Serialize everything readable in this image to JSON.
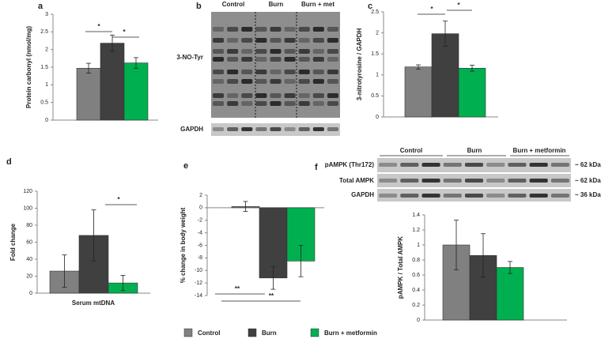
{
  "chart_data": [
    {
      "type": "bar",
      "label": "a",
      "ylabel": "Protein carbonyl (nmol/mg)",
      "values": [
        1.47,
        2.18,
        1.62
      ],
      "errors": [
        0.14,
        0.23,
        0.15
      ],
      "colors": [
        "#808080",
        "#404040",
        "#00b050"
      ],
      "ylim": [
        0,
        3
      ],
      "yticks": [
        0,
        0.5,
        1,
        1.5,
        2,
        2.5,
        3
      ],
      "annotations": [
        "*",
        "*"
      ]
    },
    {
      "type": "bar",
      "label": "c",
      "ylabel": "3-nitrotyrosine / GAPDH",
      "values": [
        1.19,
        1.98,
        1.16
      ],
      "errors": [
        0.05,
        0.3,
        0.07
      ],
      "colors": [
        "#808080",
        "#404040",
        "#00b050"
      ],
      "ylim": [
        0,
        2.5
      ],
      "yticks": [
        0,
        0.5,
        1,
        1.5,
        2,
        2.5
      ],
      "annotations": [
        "*",
        "*"
      ]
    },
    {
      "type": "bar",
      "label": "d",
      "ylabel": "Fold change",
      "xlabel": "Serum mtDNA",
      "values": [
        26,
        68,
        12
      ],
      "errors": [
        19,
        30,
        9
      ],
      "colors": [
        "#808080",
        "#404040",
        "#00b050"
      ],
      "ylim": [
        0,
        120
      ],
      "yticks": [
        0,
        20,
        40,
        60,
        80,
        100,
        120
      ],
      "annotations": [
        "*"
      ]
    },
    {
      "type": "bar",
      "label": "e",
      "ylabel": "% change in body weight",
      "values": [
        0.2,
        -11.2,
        -8.5
      ],
      "errors": [
        0.8,
        1.8,
        2.5
      ],
      "colors": [
        "#808080",
        "#404040",
        "#00b050"
      ],
      "ylim": [
        -14,
        2
      ],
      "yticks": [
        -14,
        -12,
        -10,
        -8,
        -6,
        -4,
        -2,
        0,
        2
      ],
      "annotations": [
        "**",
        "**"
      ]
    },
    {
      "type": "bar",
      "ylabel": "pAMPK / Total AMPK",
      "values": [
        1.0,
        0.86,
        0.7
      ],
      "errors": [
        0.33,
        0.29,
        0.08
      ],
      "colors": [
        "#808080",
        "#404040",
        "#00b050"
      ],
      "ylim": [
        0,
        1.4
      ],
      "yticks": [
        0,
        0.2,
        0.4,
        0.6,
        0.8,
        1,
        1.2,
        1.4
      ],
      "annotations": []
    }
  ],
  "blots": [
    {
      "label": "b",
      "groups": [
        "Control",
        "Burn",
        "Burn + met"
      ],
      "rows": [
        "3-NO-Tyr",
        "GAPDH"
      ]
    },
    {
      "label": "f",
      "groups": [
        "Control",
        "Burn",
        "Burn + metformin"
      ],
      "rows": [
        "pAMPK (Thr172)",
        "Total AMPK",
        "GAPDH"
      ],
      "sizes": [
        "~ 62 kDa",
        "~ 62 kDa",
        "~ 36 kDa"
      ]
    }
  ],
  "legend": [
    {
      "label": "Control",
      "color": "#808080"
    },
    {
      "label": "Burn",
      "color": "#404040"
    },
    {
      "label": "Burn + metformin",
      "color": "#00b050"
    }
  ]
}
